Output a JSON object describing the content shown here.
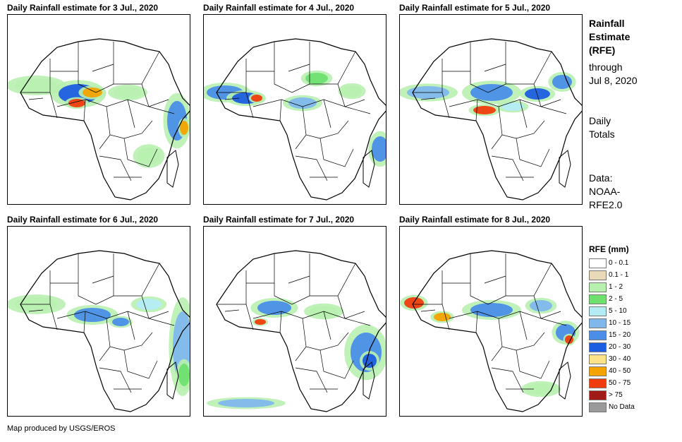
{
  "panels": [
    {
      "title": "Daily Rainfall estimate for 3 Jul., 2020"
    },
    {
      "title": "Daily Rainfall estimate for 4 Jul., 2020"
    },
    {
      "title": "Daily Rainfall estimate for 5 Jul., 2020"
    },
    {
      "title": "Daily Rainfall estimate for 6 Jul., 2020"
    },
    {
      "title": "Daily Rainfall estimate for 7 Jul., 2020"
    },
    {
      "title": "Daily Rainfall estimate for 8 Jul., 2020"
    }
  ],
  "side": {
    "title_line1": "Rainfall",
    "title_line2": "Estimate",
    "title_line3": "(RFE)",
    "through_line1": "through",
    "through_line2": "Jul 8, 2020",
    "daily_line1": "Daily",
    "daily_line2": "Totals",
    "data_line1": "Data:",
    "data_line2": "NOAA-",
    "data_line3": "RFE2.0"
  },
  "legend": {
    "title": "RFE (mm)",
    "items": [
      {
        "label": "0 - 0.1",
        "color": "#ffffff"
      },
      {
        "label": "0.1 - 1",
        "color": "#ead9b9"
      },
      {
        "label": "1 - 2",
        "color": "#b8f0b0"
      },
      {
        "label": "2 - 5",
        "color": "#6ee070"
      },
      {
        "label": "5 - 10",
        "color": "#b4ecf4"
      },
      {
        "label": "10 - 15",
        "color": "#80b8ec"
      },
      {
        "label": "15 - 20",
        "color": "#4a8ee8"
      },
      {
        "label": "20 - 30",
        "color": "#1c5ee0"
      },
      {
        "label": "30 - 40",
        "color": "#fce38a"
      },
      {
        "label": "40 - 50",
        "color": "#f4a300"
      },
      {
        "label": "50 - 75",
        "color": "#f03c0c"
      },
      {
        "label": "> 75",
        "color": "#a01a1a"
      },
      {
        "label": "No Data",
        "color": "#9a9a9a"
      }
    ]
  },
  "footer": "Map produced by USGS/EROS"
}
